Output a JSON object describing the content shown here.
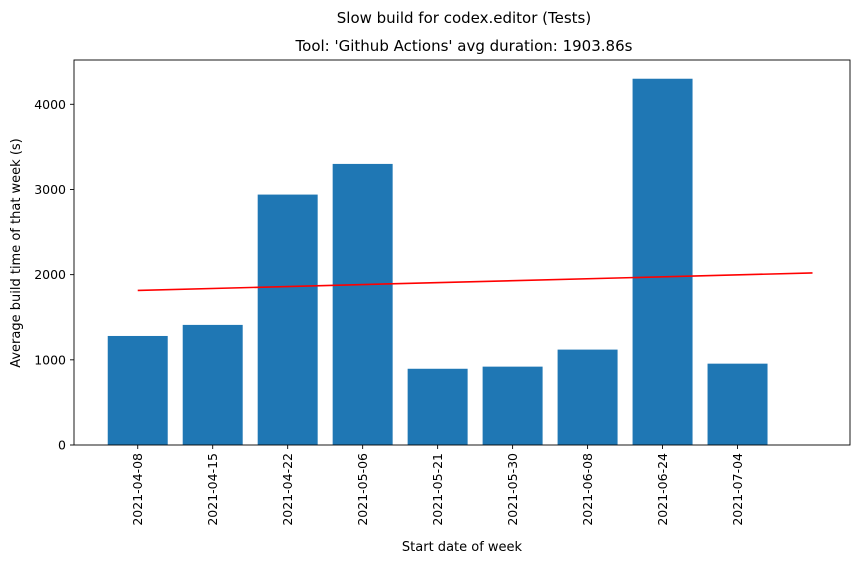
{
  "chart_data": {
    "type": "bar",
    "suptitle": "Slow build for codex.editor (Tests)",
    "title": "Tool: 'Github Actions' avg duration: 1903.86s",
    "xlabel": "Start date of week",
    "ylabel": "Average build time of that week (s)",
    "categories": [
      "2021-04-08",
      "2021-04-15",
      "2021-04-22",
      "2021-05-06",
      "2021-05-21",
      "2021-05-30",
      "2021-06-08",
      "2021-06-24",
      "2021-07-04"
    ],
    "values": [
      1280,
      1410,
      2940,
      3300,
      895,
      920,
      1120,
      4300,
      955
    ],
    "bar_color": "#1f77b4",
    "ylim": [
      0,
      4520
    ],
    "yticks": [
      0,
      1000,
      2000,
      3000,
      4000
    ],
    "trend_line": {
      "color": "#ff0000",
      "start": {
        "index": 0,
        "value": 1815
      },
      "end": {
        "index": 9,
        "value": 2020
      }
    },
    "grid": false,
    "legend": "none"
  }
}
